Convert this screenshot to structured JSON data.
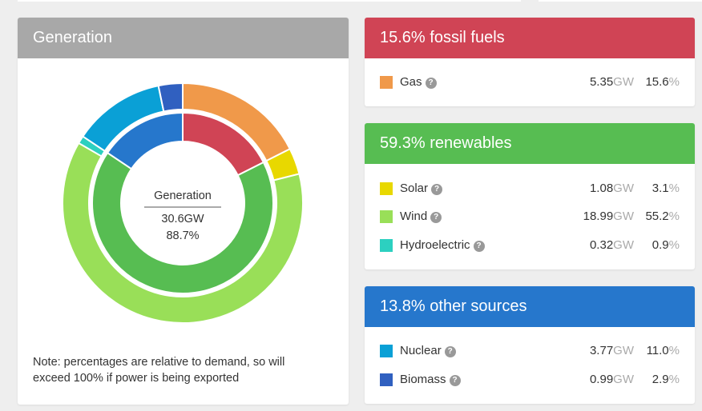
{
  "generation": {
    "title": "Generation",
    "center_label": "Generation",
    "center_gw": "30.6GW",
    "center_pct": "88.7%",
    "note": "Note: percentages are relative to demand, so will exceed 100% if power is being exported"
  },
  "categories": [
    {
      "title": "15.6% fossil fuels",
      "color": "#d04455",
      "share": 15.6,
      "sources": [
        {
          "name": "Gas",
          "color": "#f0994a",
          "gw": "5.35",
          "unit": "GW",
          "pct": "15.6",
          "pct_sign": "%",
          "value": 5.35
        }
      ]
    },
    {
      "title": "59.3% renewables",
      "color": "#57bd52",
      "share": 59.3,
      "sources": [
        {
          "name": "Solar",
          "color": "#e8d800",
          "gw": "1.08",
          "unit": "GW",
          "pct": "3.1",
          "pct_sign": "%",
          "value": 1.08
        },
        {
          "name": "Wind",
          "color": "#99df58",
          "gw": "18.99",
          "unit": "GW",
          "pct": "55.2",
          "pct_sign": "%",
          "value": 18.99
        },
        {
          "name": "Hydroelectric",
          "color": "#2cd0c0",
          "gw": "0.32",
          "unit": "GW",
          "pct": "0.9",
          "pct_sign": "%",
          "value": 0.32
        }
      ]
    },
    {
      "title": "13.8% other sources",
      "color": "#2677cc",
      "share": 13.8,
      "sources": [
        {
          "name": "Nuclear",
          "color": "#0aa0d6",
          "gw": "3.77",
          "unit": "GW",
          "pct": "11.0",
          "pct_sign": "%",
          "value": 3.77
        },
        {
          "name": "Biomass",
          "color": "#3060c0",
          "gw": "0.99",
          "unit": "GW",
          "pct": "2.9",
          "pct_sign": "%",
          "value": 0.99
        }
      ]
    }
  ],
  "help_glyph": "?",
  "help_icon": "question-circle-icon"
}
